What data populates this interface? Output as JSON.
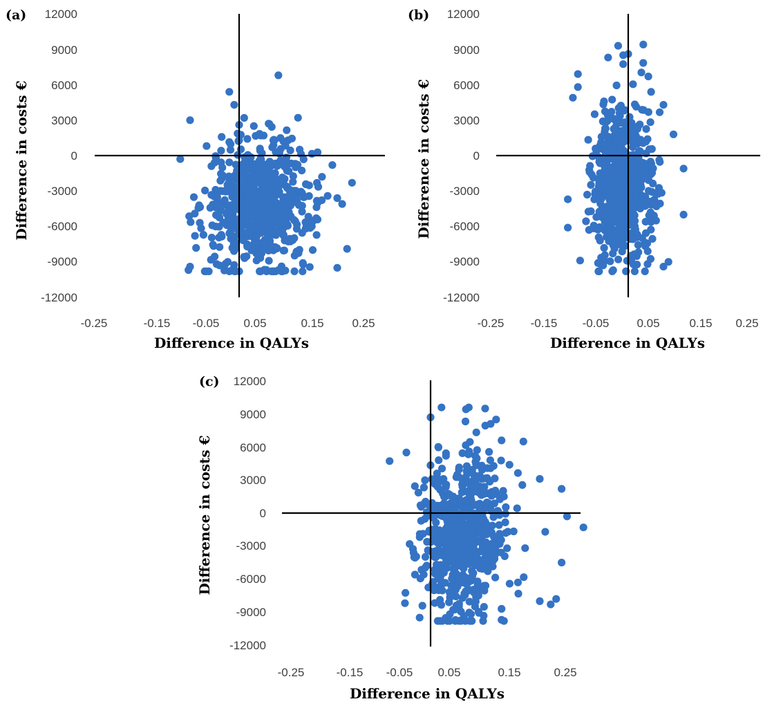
{
  "figure": {
    "point_color": "#3573C4",
    "x_ticks": [
      "-0.25",
      "-0.15",
      "-0.05",
      "0.05",
      "0.15",
      "0.25"
    ],
    "y_ticks": [
      "12000",
      "9000",
      "6000",
      "3000",
      "0",
      "-3000",
      "-6000",
      "-9000",
      "-12000"
    ]
  },
  "chart_data": [
    {
      "type": "scatter",
      "panel": "(a)",
      "xlabel": "Difference in QALYs",
      "ylabel": "Difference in costs €",
      "xlim": [
        -0.3,
        0.3
      ],
      "ylim": [
        -12000,
        12000
      ],
      "x_tick_labels": [
        "-0.25",
        "-0.15",
        "-0.05",
        "0.05",
        "0.15",
        "0.25"
      ],
      "y_tick_labels": [
        "12000",
        "9000",
        "6000",
        "3000",
        "0",
        "-3000",
        "-6000",
        "-9000",
        "-12000"
      ],
      "cluster": {
        "n_points": 650,
        "x_center": 0.04,
        "x_spread": 0.055,
        "y_center": -4200,
        "y_spread": 2700
      },
      "points": [
        [
          -0.1,
          3000
        ],
        [
          -0.02,
          5400
        ],
        [
          -0.01,
          4300
        ],
        [
          0.08,
          6800
        ],
        [
          0.0,
          2600
        ],
        [
          0.03,
          2500
        ],
        [
          0.12,
          3200
        ],
        [
          0.0,
          1300
        ],
        [
          0.1,
          1300
        ],
        [
          0.05,
          1700
        ],
        [
          -0.05,
          -600
        ],
        [
          -0.12,
          -300
        ],
        [
          0.23,
          -2300
        ],
        [
          0.19,
          -800
        ],
        [
          0.21,
          -4100
        ],
        [
          0.2,
          -3600
        ],
        [
          0.22,
          -7900
        ],
        [
          0.2,
          -9500
        ],
        [
          -0.1,
          -9400
        ],
        [
          -0.09,
          -6800
        ],
        [
          -0.03,
          -9600
        ],
        [
          -0.04,
          -9300
        ],
        [
          0.08,
          -9700
        ],
        [
          0.15,
          -8000
        ],
        [
          0.13,
          -9100
        ],
        [
          0.16,
          -4000
        ]
      ],
      "grid": false,
      "legend": "none"
    },
    {
      "type": "scatter",
      "panel": "(b)",
      "xlabel": "Difference in QALYs",
      "ylabel": "Difference in costs €",
      "xlim": [
        -0.3,
        0.3
      ],
      "ylim": [
        -12000,
        12000
      ],
      "x_tick_labels": [
        "-0.25",
        "-0.15",
        "-0.05",
        "0.05",
        "0.15",
        "0.25"
      ],
      "y_tick_labels": [
        "12000",
        "9000",
        "6000",
        "3000",
        "0",
        "-3000",
        "-6000",
        "-9000",
        "-12000"
      ],
      "cluster": {
        "n_points": 650,
        "x_center": -0.01,
        "x_spread": 0.03,
        "y_center": -2500,
        "y_spread": 3200
      },
      "points": [
        [
          -0.02,
          9300
        ],
        [
          0.03,
          9400
        ],
        [
          -0.01,
          8500
        ],
        [
          0.0,
          8600
        ],
        [
          -0.04,
          8300
        ],
        [
          -0.1,
          6900
        ],
        [
          0.04,
          6700
        ],
        [
          -0.1,
          5800
        ],
        [
          -0.11,
          4900
        ],
        [
          0.07,
          4300
        ],
        [
          0.09,
          1800
        ],
        [
          0.11,
          -1100
        ],
        [
          0.11,
          -5000
        ],
        [
          -0.12,
          -3700
        ],
        [
          -0.12,
          -6100
        ],
        [
          0.08,
          -9000
        ],
        [
          0.07,
          -9400
        ],
        [
          -0.05,
          -9300
        ],
        [
          -0.03,
          -9700
        ],
        [
          0.01,
          -9200
        ],
        [
          -0.06,
          -9100
        ]
      ],
      "grid": false,
      "legend": "none"
    },
    {
      "type": "scatter",
      "panel": "(c)",
      "xlabel": "Difference in QALYs",
      "ylabel": "Difference in costs €",
      "xlim": [
        -0.3,
        0.3
      ],
      "ylim": [
        -12000,
        12000
      ],
      "x_tick_labels": [
        "-0.25",
        "-0.15",
        "-0.05",
        "0.05",
        "0.15",
        "0.25"
      ],
      "y_tick_labels": [
        "12000",
        "9000",
        "6000",
        "3000",
        "0",
        "-3000",
        "-6000",
        "-9000",
        "-12000"
      ],
      "cluster": {
        "n_points": 650,
        "x_center": 0.055,
        "x_spread": 0.04,
        "y_center": -2000,
        "y_spread": 3800
      },
      "points": [
        [
          0.02,
          9600
        ],
        [
          0.07,
          9600
        ],
        [
          0.1,
          9500
        ],
        [
          0.0,
          8700
        ],
        [
          0.12,
          8500
        ],
        [
          0.11,
          8100
        ],
        [
          0.17,
          6500
        ],
        [
          0.13,
          6600
        ],
        [
          0.2,
          3100
        ],
        [
          0.24,
          2200
        ],
        [
          0.25,
          -300
        ],
        [
          0.28,
          -1300
        ],
        [
          0.21,
          -1700
        ],
        [
          0.24,
          -4500
        ],
        [
          0.23,
          -7800
        ],
        [
          0.22,
          -8300
        ],
        [
          0.2,
          -8000
        ],
        [
          -0.03,
          -4000
        ],
        [
          -0.02,
          -9500
        ],
        [
          0.13,
          -9700
        ],
        [
          0.13,
          -8700
        ],
        [
          0.16,
          -6300
        ]
      ],
      "grid": false,
      "legend": "none"
    }
  ]
}
